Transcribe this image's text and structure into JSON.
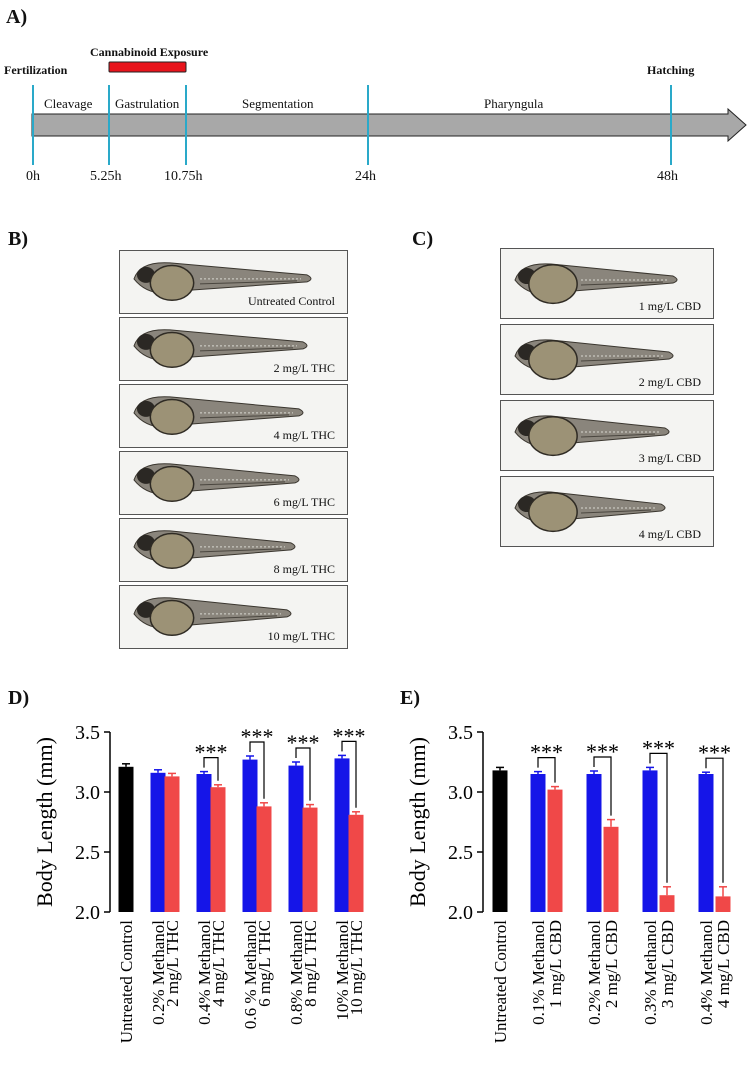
{
  "panels": {
    "a": "A)",
    "b": "B)",
    "c": "C)",
    "d": "D)",
    "e": "E)"
  },
  "timeline": {
    "fertilization": "Fertilization",
    "exposure": "Cannabinoid Exposure",
    "hatching": "Hatching",
    "stages": [
      "Cleavage",
      "Gastrulation",
      "Segmentation",
      "Pharyngula"
    ],
    "times": [
      "0h",
      "5.25h",
      "10.75h",
      "24h",
      "48h"
    ],
    "exposure_color": "#e8141c",
    "arrow_color": "#a8a8a8",
    "marker_color": "#2aa9c9"
  },
  "thc_images": [
    "Untreated Control",
    "2 mg/L THC",
    "4 mg/L THC",
    "6 mg/L THC",
    "8 mg/L THC",
    "10 mg/L THC"
  ],
  "cbd_images": [
    "1 mg/L CBD",
    "2 mg/L CBD",
    "3 mg/L CBD",
    "4 mg/L CBD"
  ],
  "chart_data": [
    {
      "type": "bar",
      "ylabel": "Body Length (mm)",
      "ylim": [
        2.0,
        3.5
      ],
      "yticks": [
        "2.0",
        "2.5",
        "3.0",
        "3.5"
      ],
      "categories": [
        "Untreated Control",
        "0.2% Methanol",
        "2 mg/L THC",
        "0.4% Methanol",
        "4 mg/L THC",
        "0.6 % Methanol",
        "6 mg/L THC",
        "0.8% Methanol",
        "8 mg/L THC",
        "10% Methanol",
        "10 mg/L THC"
      ],
      "values": [
        3.21,
        3.16,
        3.13,
        3.15,
        3.04,
        3.27,
        2.88,
        3.22,
        2.87,
        3.28,
        2.81
      ],
      "errors": [
        0.025,
        0.025,
        0.025,
        0.02,
        0.02,
        0.03,
        0.03,
        0.03,
        0.025,
        0.025,
        0.025
      ],
      "colors": [
        "#000000",
        "#1515e8",
        "#f04848",
        "#1515e8",
        "#f04848",
        "#1515e8",
        "#f04848",
        "#1515e8",
        "#f04848",
        "#1515e8",
        "#f04848"
      ],
      "significance": [
        {
          "pair": [
            3,
            4
          ],
          "label": "***"
        },
        {
          "pair": [
            5,
            6
          ],
          "label": "***"
        },
        {
          "pair": [
            7,
            8
          ],
          "label": "***"
        },
        {
          "pair": [
            9,
            10
          ],
          "label": "***"
        }
      ]
    },
    {
      "type": "bar",
      "ylabel": "Body Length (mm)",
      "ylim": [
        2.0,
        3.5
      ],
      "yticks": [
        "2.0",
        "2.5",
        "3.0",
        "3.5"
      ],
      "categories": [
        "Untreated Control",
        "0.1% Methanol",
        "1 mg/L CBD",
        "0.2% Methanol",
        "2 mg/L CBD",
        "0.3% Methanol",
        "3 mg/L CBD",
        "0.4% Methanol",
        "4 mg/L CBD"
      ],
      "values": [
        3.18,
        3.15,
        3.02,
        3.15,
        2.71,
        3.18,
        2.14,
        3.15,
        2.13
      ],
      "errors": [
        0.025,
        0.02,
        0.025,
        0.025,
        0.06,
        0.025,
        0.07,
        0.015,
        0.08
      ],
      "colors": [
        "#000000",
        "#1515e8",
        "#f04848",
        "#1515e8",
        "#f04848",
        "#1515e8",
        "#f04848",
        "#1515e8",
        "#f04848"
      ],
      "significance": [
        {
          "pair": [
            1,
            2
          ],
          "label": "***"
        },
        {
          "pair": [
            3,
            4
          ],
          "label": "***"
        },
        {
          "pair": [
            5,
            6
          ],
          "label": "***"
        },
        {
          "pair": [
            7,
            8
          ],
          "label": "***"
        }
      ]
    }
  ]
}
